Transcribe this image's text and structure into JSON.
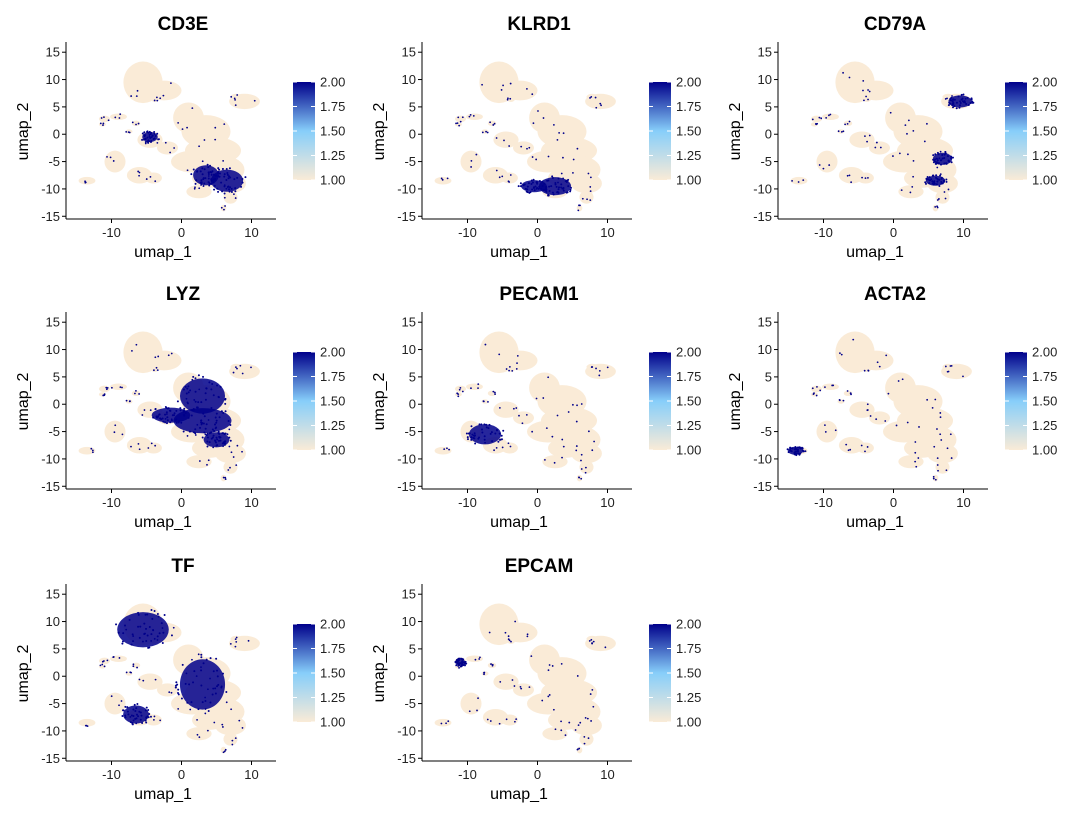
{
  "colors": {
    "low": "#FAEBD7",
    "mid": "#87CEFA",
    "high": "#00008B",
    "cluster_fill": "#FAEBD7",
    "axis": "#000000"
  },
  "chart_data": {
    "type": "scatter",
    "subtype": "umap-feature-plot",
    "xlabel": "umap_1",
    "ylabel": "umap_2",
    "xlim": [
      -16.5,
      13.5
    ],
    "ylim": [
      -15.5,
      16.5
    ],
    "x_ticks": [
      -10,
      0,
      10
    ],
    "y_ticks": [
      -15,
      -10,
      -5,
      0,
      5,
      10,
      15
    ],
    "legend": {
      "position": "right",
      "ticks": [
        "2.00",
        "1.75",
        "1.50",
        "1.25",
        "1.00"
      ],
      "min": 1.0,
      "max": 2.0
    },
    "panels": [
      {
        "title": "CD3E",
        "high_regions": [
          [
            -4.5,
            -0.5,
            1.2,
            1.0
          ],
          [
            6.5,
            -8.5,
            2.5,
            2.2
          ],
          [
            3.5,
            -7.5,
            2.0,
            2.0
          ]
        ]
      },
      {
        "title": "KLRD1",
        "high_regions": [
          [
            -0.5,
            -9.5,
            2.0,
            1.2
          ],
          [
            2.5,
            -9.5,
            2.5,
            1.8
          ]
        ]
      },
      {
        "title": "CD79A",
        "high_regions": [
          [
            9.5,
            6.0,
            1.8,
            1.2
          ],
          [
            7.0,
            -4.5,
            1.5,
            1.2
          ],
          [
            6.0,
            -8.5,
            1.5,
            1.0
          ]
        ]
      },
      {
        "title": "LYZ",
        "high_regions": [
          [
            3.0,
            1.5,
            3.5,
            3.5
          ],
          [
            3.0,
            -3.0,
            4.5,
            2.5
          ],
          [
            -1.5,
            -2.0,
            3.0,
            1.5
          ],
          [
            5.0,
            -6.5,
            2.0,
            1.5
          ]
        ]
      },
      {
        "title": "PECAM1",
        "high_regions": [
          [
            -7.5,
            -5.5,
            2.5,
            2.0
          ]
        ]
      },
      {
        "title": "ACTA2",
        "high_regions": [
          [
            -14.0,
            -8.5,
            1.2,
            0.8
          ]
        ]
      },
      {
        "title": "TF",
        "high_regions": [
          [
            -5.5,
            8.5,
            4.0,
            3.5
          ],
          [
            -6.5,
            -7.0,
            2.0,
            1.8
          ],
          [
            3.0,
            -1.5,
            3.5,
            5.0
          ]
        ]
      },
      {
        "title": "EPCAM",
        "high_regions": [
          [
            -11.0,
            2.5,
            0.8,
            0.7
          ]
        ]
      }
    ],
    "clusters": [
      [
        -5.5,
        9.5,
        2.8,
        3.8
      ],
      [
        -2.5,
        8.0,
        2.5,
        1.8
      ],
      [
        -9.0,
        3.2,
        1.2,
        0.6
      ],
      [
        -3.8,
        6.5,
        0.6,
        0.6
      ],
      [
        -11.0,
        2.8,
        0.8,
        0.6
      ],
      [
        -11.3,
        1.8,
        0.5,
        0.4
      ],
      [
        -6.5,
        2.0,
        0.6,
        0.5
      ],
      [
        -7.5,
        0.5,
        0.5,
        0.4
      ],
      [
        -13.5,
        -8.5,
        1.2,
        0.7
      ],
      [
        -9.5,
        -5.0,
        1.5,
        2.0
      ],
      [
        -6.0,
        -7.5,
        1.8,
        1.5
      ],
      [
        -4.0,
        -8.0,
        1.2,
        1.0
      ],
      [
        9.0,
        6.0,
        2.2,
        1.4
      ],
      [
        7.8,
        6.8,
        0.8,
        0.6
      ],
      [
        -4.5,
        -1.0,
        1.8,
        1.5
      ],
      [
        -2.0,
        -2.5,
        1.5,
        1.2
      ],
      [
        1.0,
        3.0,
        2.2,
        2.8
      ],
      [
        3.5,
        0.5,
        3.5,
        3.0
      ],
      [
        4.5,
        -3.0,
        4.0,
        2.5
      ],
      [
        1.5,
        -5.0,
        3.0,
        2.0
      ],
      [
        6.0,
        -6.5,
        3.0,
        2.5
      ],
      [
        4.0,
        -8.0,
        2.5,
        1.8
      ],
      [
        7.0,
        -9.0,
        2.2,
        1.8
      ],
      [
        2.5,
        -10.5,
        1.8,
        1.2
      ],
      [
        7.0,
        -11.5,
        1.0,
        1.2
      ],
      [
        6.0,
        -13.5,
        0.4,
        0.6
      ]
    ]
  }
}
